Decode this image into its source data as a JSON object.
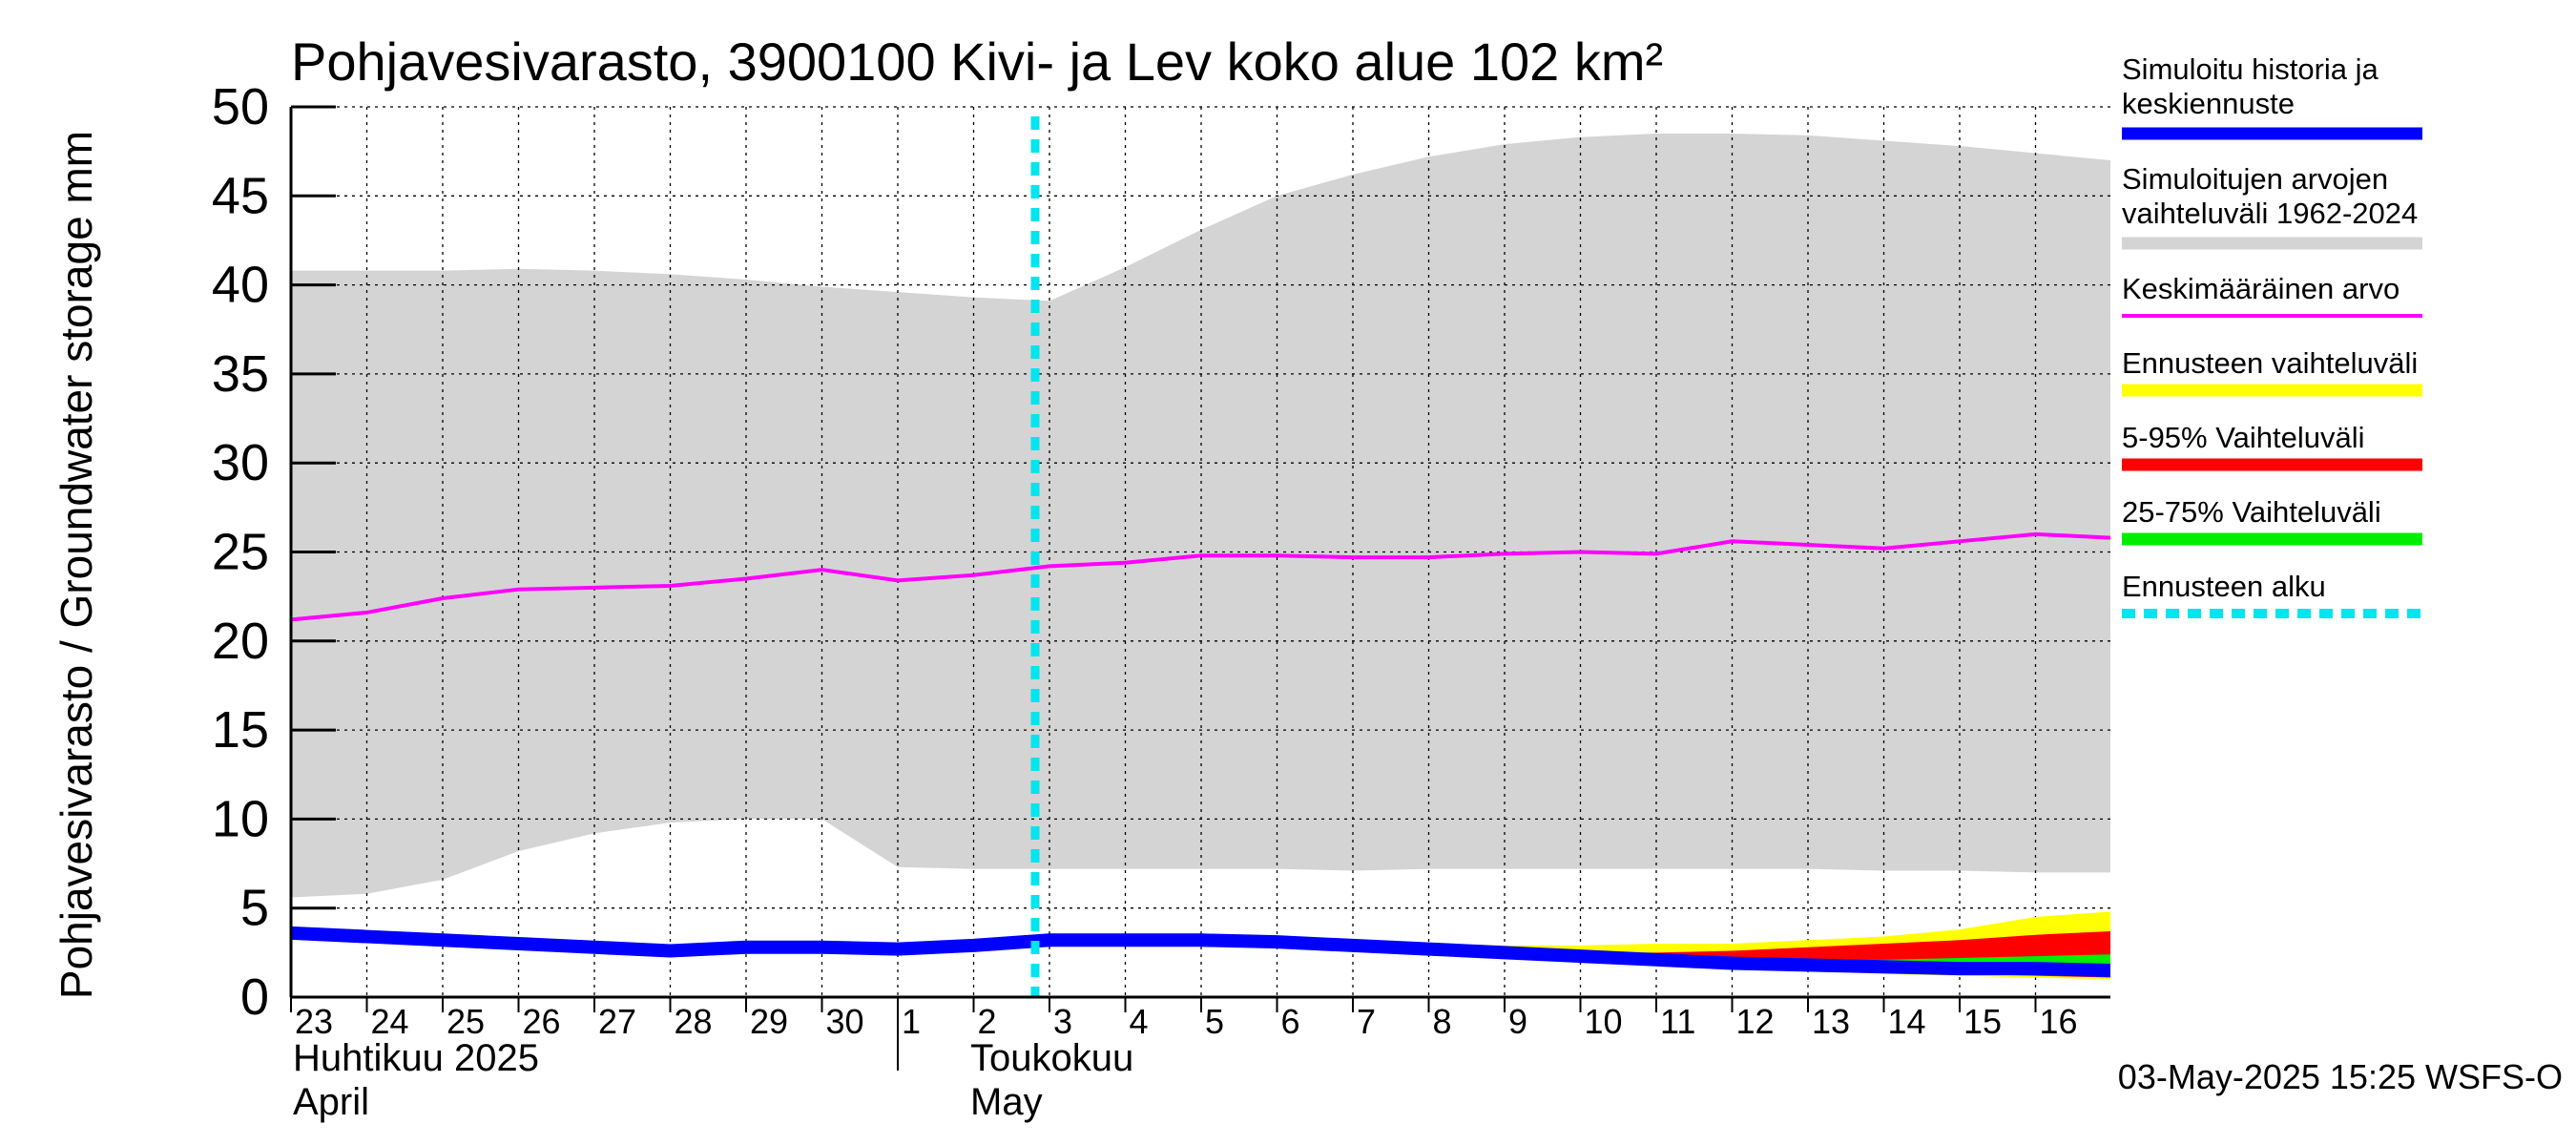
{
  "chart_data": {
    "type": "line",
    "title": "Pohjavesivarasto, 3900100 Kivi- ja Lev koko alue 102 km²",
    "ylabel": "Pohjavesivarasto / Groundwater storage   mm",
    "ylim": [
      0,
      50
    ],
    "yticks": [
      "0",
      "5",
      "10",
      "15",
      "20",
      "25",
      "30",
      "35",
      "40",
      "45",
      "50"
    ],
    "x_day_labels": [
      "23",
      "24",
      "25",
      "26",
      "27",
      "28",
      "29",
      "30",
      "1",
      "2",
      "3",
      "4",
      "5",
      "6",
      "7",
      "8",
      "9",
      "10",
      "11",
      "12",
      "13",
      "14",
      "15",
      "16"
    ],
    "month_labels": {
      "april_fi": "Huhtikuu  2025",
      "april_en": "April",
      "may_fi": "Toukokuu",
      "may_en": "May"
    },
    "forecast_start": "2025-05-03",
    "grid": true,
    "legend_position": "right",
    "footer": "03-May-2025 15:25 WSFS-O",
    "legend": [
      {
        "label": "Simuloitu historia ja keskiennuste",
        "color": "#0000ff",
        "style": "thick"
      },
      {
        "label": "Simuloitujen arvojen vaihteluväli 1962-2024",
        "color": "#d4d4d4",
        "style": "thick"
      },
      {
        "label": "Keskimääräinen arvo",
        "color": "#ff00ff",
        "style": "thin"
      },
      {
        "label": "Ennusteen vaihteluväli",
        "color": "#ffff00",
        "style": "thick"
      },
      {
        "label": "5-95% Vaihteluväli",
        "color": "#ff0000",
        "style": "thick"
      },
      {
        "label": "25-75% Vaihteluväli",
        "color": "#00ee00",
        "style": "thick"
      },
      {
        "label": "Ennusteen alku",
        "color": "#00e5ee",
        "style": "dashed"
      }
    ],
    "series": [
      {
        "name": "Simuloitujen arvojen vaihteluväli 1962-2024",
        "type": "band",
        "color": "#d4d4d4",
        "x": [
          "2025-04-23",
          "2025-04-24",
          "2025-04-25",
          "2025-04-26",
          "2025-04-27",
          "2025-04-28",
          "2025-04-29",
          "2025-04-30",
          "2025-05-01",
          "2025-05-02",
          "2025-05-03",
          "2025-05-04",
          "2025-05-05",
          "2025-05-06",
          "2025-05-07",
          "2025-05-08",
          "2025-05-09",
          "2025-05-10",
          "2025-05-11",
          "2025-05-12",
          "2025-05-13",
          "2025-05-14",
          "2025-05-15",
          "2025-05-16",
          "2025-05-17"
        ],
        "upper": [
          40.8,
          40.8,
          40.8,
          40.9,
          40.8,
          40.6,
          40.3,
          39.9,
          39.6,
          39.3,
          39.1,
          41.0,
          43.1,
          45.0,
          46.2,
          47.2,
          47.9,
          48.3,
          48.5,
          48.5,
          48.4,
          48.1,
          47.8,
          47.4,
          47.0
        ],
        "lower": [
          5.6,
          5.8,
          6.6,
          8.2,
          9.2,
          9.8,
          10.0,
          10.0,
          7.3,
          7.2,
          7.2,
          7.2,
          7.2,
          7.2,
          7.1,
          7.2,
          7.2,
          7.2,
          7.2,
          7.2,
          7.2,
          7.1,
          7.1,
          7.0,
          7.0
        ]
      },
      {
        "name": "Keskimääräinen arvo",
        "color": "#ff00ff",
        "x": [
          "2025-04-23",
          "2025-04-24",
          "2025-04-25",
          "2025-04-26",
          "2025-04-27",
          "2025-04-28",
          "2025-04-29",
          "2025-04-30",
          "2025-05-01",
          "2025-05-02",
          "2025-05-03",
          "2025-05-04",
          "2025-05-05",
          "2025-05-06",
          "2025-05-07",
          "2025-05-08",
          "2025-05-09",
          "2025-05-10",
          "2025-05-11",
          "2025-05-12",
          "2025-05-13",
          "2025-05-14",
          "2025-05-15",
          "2025-05-16",
          "2025-05-17"
        ],
        "values": [
          21.2,
          21.6,
          22.4,
          22.9,
          23.0,
          23.1,
          23.5,
          24.0,
          23.4,
          23.7,
          24.2,
          24.4,
          24.8,
          24.8,
          24.7,
          24.7,
          24.9,
          25.0,
          24.9,
          25.6,
          25.4,
          25.2,
          25.6,
          26.0,
          25.8
        ]
      },
      {
        "name": "Ennusteen vaihteluväli",
        "type": "band",
        "color": "#ffff00",
        "x": [
          "2025-05-03",
          "2025-05-04",
          "2025-05-05",
          "2025-05-06",
          "2025-05-07",
          "2025-05-08",
          "2025-05-09",
          "2025-05-10",
          "2025-05-11",
          "2025-05-12",
          "2025-05-13",
          "2025-05-14",
          "2025-05-15",
          "2025-05-16",
          "2025-05-17"
        ],
        "upper": [
          3.2,
          3.3,
          3.3,
          3.3,
          3.1,
          3.0,
          2.9,
          2.9,
          3.0,
          3.0,
          3.2,
          3.4,
          3.8,
          4.5,
          4.8
        ],
        "lower": [
          3.2,
          3.2,
          3.2,
          3.0,
          2.8,
          2.6,
          2.4,
          2.1,
          1.9,
          1.7,
          1.5,
          1.3,
          1.2,
          1.1,
          1.0
        ]
      },
      {
        "name": "5-95% Vaihteluväli",
        "type": "band",
        "color": "#ff0000",
        "x": [
          "2025-05-03",
          "2025-05-04",
          "2025-05-05",
          "2025-05-06",
          "2025-05-07",
          "2025-05-08",
          "2025-05-09",
          "2025-05-10",
          "2025-05-11",
          "2025-05-12",
          "2025-05-13",
          "2025-05-14",
          "2025-05-15",
          "2025-05-16",
          "2025-05-17"
        ],
        "upper": [
          3.2,
          3.2,
          3.2,
          3.1,
          2.9,
          2.7,
          2.6,
          2.5,
          2.5,
          2.6,
          2.8,
          3.0,
          3.2,
          3.5,
          3.7
        ],
        "lower": [
          3.2,
          3.2,
          3.2,
          3.0,
          2.8,
          2.6,
          2.4,
          2.2,
          2.0,
          1.8,
          1.6,
          1.4,
          1.3,
          1.2,
          1.1
        ]
      },
      {
        "name": "25-75% Vaihteluväli",
        "type": "band",
        "color": "#00ee00",
        "x": [
          "2025-05-03",
          "2025-05-04",
          "2025-05-05",
          "2025-05-06",
          "2025-05-07",
          "2025-05-08",
          "2025-05-09",
          "2025-05-10",
          "2025-05-11",
          "2025-05-12",
          "2025-05-13",
          "2025-05-14",
          "2025-05-15",
          "2025-05-16",
          "2025-05-17"
        ],
        "upper": [
          3.2,
          3.2,
          3.2,
          3.0,
          2.8,
          2.6,
          2.4,
          2.3,
          2.2,
          2.1,
          2.1,
          2.1,
          2.2,
          2.3,
          2.4
        ],
        "lower": [
          3.2,
          3.2,
          3.2,
          3.0,
          2.8,
          2.6,
          2.4,
          2.2,
          2.0,
          1.9,
          1.8,
          1.7,
          1.6,
          1.6,
          1.6
        ]
      },
      {
        "name": "Simuloitu historia ja keskiennuste",
        "color": "#0000ff",
        "x": [
          "2025-04-23",
          "2025-04-24",
          "2025-04-25",
          "2025-04-26",
          "2025-04-27",
          "2025-04-28",
          "2025-04-29",
          "2025-04-30",
          "2025-05-01",
          "2025-05-02",
          "2025-05-03",
          "2025-05-04",
          "2025-05-05",
          "2025-05-06",
          "2025-05-07",
          "2025-05-08",
          "2025-05-09",
          "2025-05-10",
          "2025-05-11",
          "2025-05-12",
          "2025-05-13",
          "2025-05-14",
          "2025-05-15",
          "2025-05-16",
          "2025-05-17"
        ],
        "values": [
          3.6,
          3.4,
          3.2,
          3.0,
          2.8,
          2.6,
          2.8,
          2.8,
          2.7,
          2.9,
          3.2,
          3.2,
          3.2,
          3.1,
          2.9,
          2.7,
          2.5,
          2.3,
          2.1,
          1.9,
          1.8,
          1.7,
          1.6,
          1.6,
          1.5
        ]
      }
    ]
  }
}
